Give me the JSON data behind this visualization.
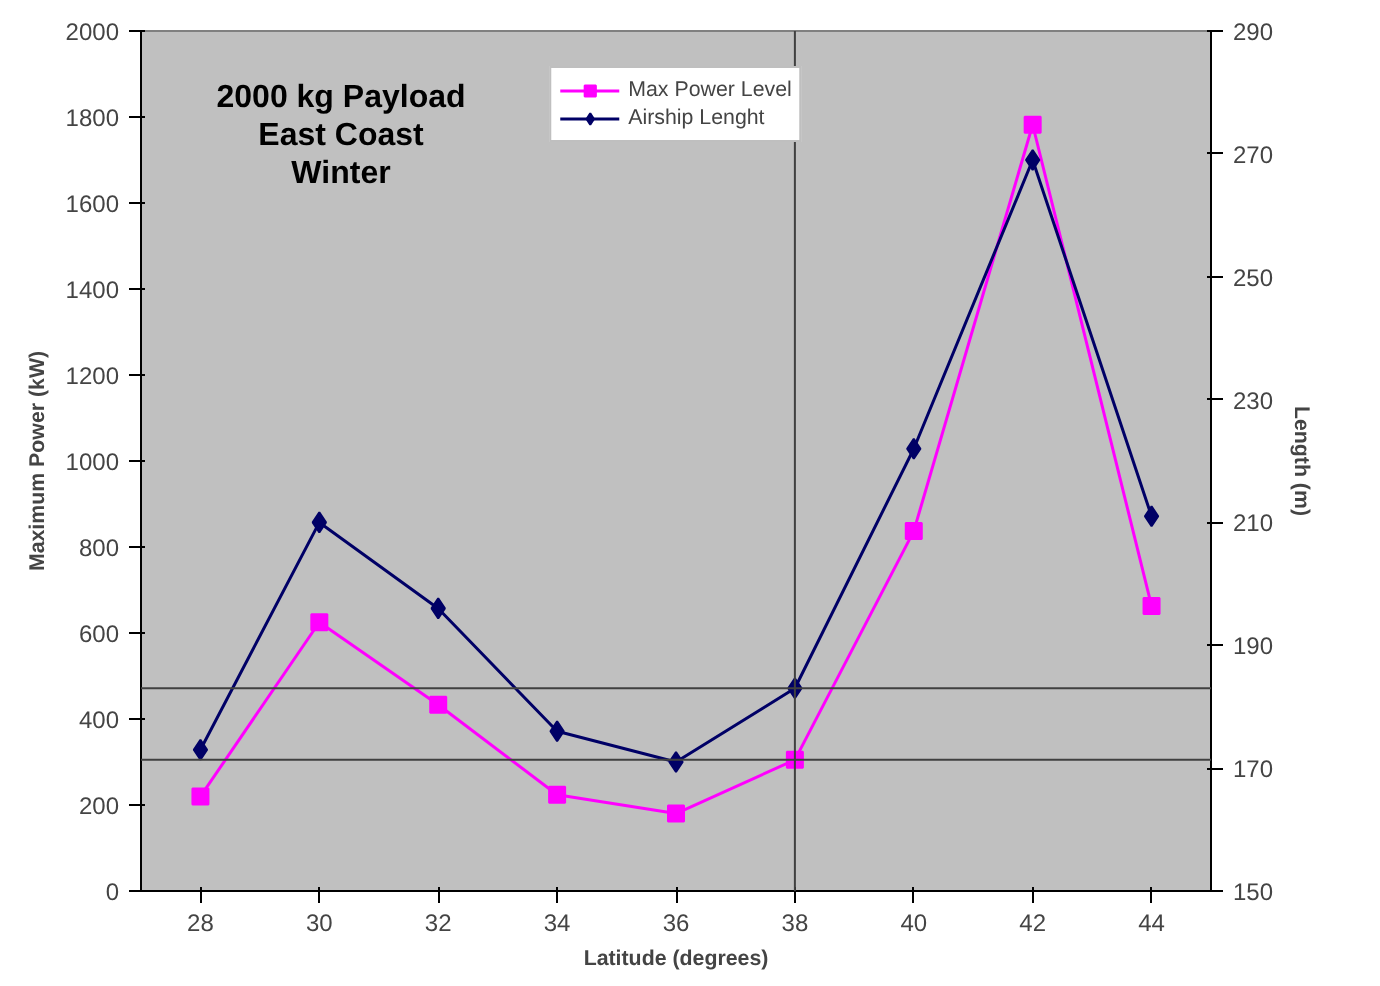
{
  "chart_data": {
    "type": "line",
    "title": "2000 kg Payload\nEast Coast\nWinter",
    "xlabel": "Latitude (degrees)",
    "ylabel": "Maximum Power (kW)",
    "y2label": "Length (m)",
    "x": [
      28,
      30,
      32,
      34,
      36,
      38,
      40,
      42,
      44
    ],
    "series": [
      {
        "name": "Max Power Level",
        "color": "#ff00ff",
        "marker": "square",
        "values": [
          220,
          625,
          433,
          224,
          180,
          305,
          837,
          1782,
          663
        ]
      },
      {
        "name": "Airship Lenght",
        "color": "#000066",
        "marker": "diamond",
        "axis": "y2",
        "values": [
          173,
          210,
          196,
          176,
          171,
          183,
          222,
          269,
          211
        ]
      }
    ],
    "xlim": [
      27,
      45
    ],
    "xticks": [
      28,
      30,
      32,
      34,
      36,
      38,
      40,
      42,
      44
    ],
    "ylim": [
      0,
      2000
    ],
    "yticks": [
      0,
      200,
      400,
      600,
      800,
      1000,
      1200,
      1400,
      1600,
      1800,
      2000
    ],
    "y2lim": [
      150,
      290
    ],
    "y2ticks": [
      150,
      170,
      190,
      210,
      230,
      250,
      270,
      290
    ],
    "ref_lines": [
      {
        "axis": "y",
        "value": 305,
        "color": "#404040"
      },
      {
        "axis": "y2",
        "value": 183,
        "color": "#404040"
      },
      {
        "axis": "x",
        "value": 38,
        "color": "#404040"
      }
    ],
    "grid": false,
    "legend": "top",
    "line_style": "solid"
  }
}
